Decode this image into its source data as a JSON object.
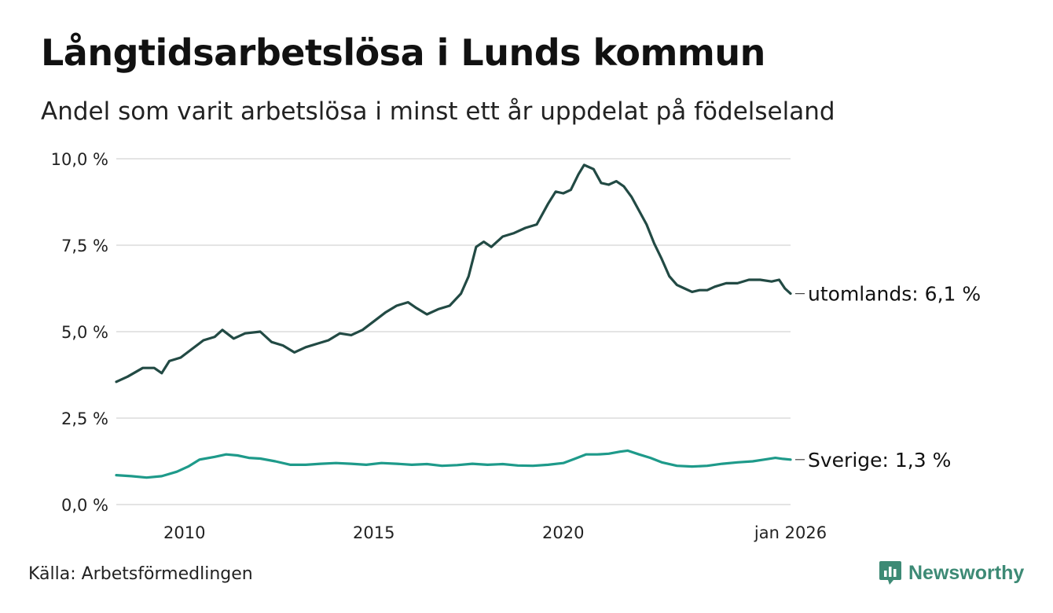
{
  "title": "Långtidsarbetslösa i Lunds kommun",
  "subtitle": "Andel som varit arbetslösa i minst ett år uppdelat på födelseland",
  "source": "Källa: Arbetsförmedlingen",
  "brand": {
    "name": "Newsworthy",
    "icon": "newsworthy-logo-icon",
    "color": "#3d8a75"
  },
  "chart_data": {
    "type": "line",
    "ylim": [
      0,
      10
    ],
    "xlim": [
      2008.2,
      2026.0
    ],
    "y_ticks": [
      {
        "value": 0,
        "label": "0,0 %"
      },
      {
        "value": 2.5,
        "label": "2,5 %"
      },
      {
        "value": 5,
        "label": "5,0 %"
      },
      {
        "value": 7.5,
        "label": "7,5 %"
      },
      {
        "value": 10,
        "label": "10,0 %"
      }
    ],
    "x_ticks": [
      {
        "value": 2010,
        "label": "2010"
      },
      {
        "value": 2015,
        "label": "2015"
      },
      {
        "value": 2020,
        "label": "2020"
      },
      {
        "value": 2026,
        "label": "jan 2026"
      }
    ],
    "grid": true,
    "series": [
      {
        "name": "utomlands",
        "label": "utomlands: 6,1 %",
        "color": "#224a44",
        "points": [
          [
            2008.2,
            3.55
          ],
          [
            2008.5,
            3.7
          ],
          [
            2008.9,
            3.95
          ],
          [
            2009.2,
            3.95
          ],
          [
            2009.4,
            3.8
          ],
          [
            2009.6,
            4.15
          ],
          [
            2009.9,
            4.25
          ],
          [
            2010.2,
            4.5
          ],
          [
            2010.5,
            4.75
          ],
          [
            2010.8,
            4.85
          ],
          [
            2011.0,
            5.05
          ],
          [
            2011.3,
            4.8
          ],
          [
            2011.6,
            4.95
          ],
          [
            2012.0,
            5.0
          ],
          [
            2012.3,
            4.7
          ],
          [
            2012.6,
            4.6
          ],
          [
            2012.9,
            4.4
          ],
          [
            2013.2,
            4.55
          ],
          [
            2013.5,
            4.65
          ],
          [
            2013.8,
            4.75
          ],
          [
            2014.1,
            4.95
          ],
          [
            2014.4,
            4.9
          ],
          [
            2014.7,
            5.05
          ],
          [
            2015.0,
            5.3
          ],
          [
            2015.3,
            5.55
          ],
          [
            2015.6,
            5.75
          ],
          [
            2015.9,
            5.85
          ],
          [
            2016.1,
            5.7
          ],
          [
            2016.4,
            5.5
          ],
          [
            2016.7,
            5.65
          ],
          [
            2017.0,
            5.75
          ],
          [
            2017.3,
            6.1
          ],
          [
            2017.5,
            6.6
          ],
          [
            2017.7,
            7.45
          ],
          [
            2017.9,
            7.6
          ],
          [
            2018.1,
            7.45
          ],
          [
            2018.4,
            7.75
          ],
          [
            2018.7,
            7.85
          ],
          [
            2019.0,
            8.0
          ],
          [
            2019.3,
            8.1
          ],
          [
            2019.6,
            8.7
          ],
          [
            2019.8,
            9.05
          ],
          [
            2020.0,
            9.0
          ],
          [
            2020.2,
            9.1
          ],
          [
            2020.4,
            9.55
          ],
          [
            2020.55,
            9.82
          ],
          [
            2020.8,
            9.7
          ],
          [
            2021.0,
            9.3
          ],
          [
            2021.2,
            9.25
          ],
          [
            2021.4,
            9.35
          ],
          [
            2021.6,
            9.2
          ],
          [
            2021.8,
            8.9
          ],
          [
            2022.0,
            8.5
          ],
          [
            2022.2,
            8.1
          ],
          [
            2022.4,
            7.55
          ],
          [
            2022.6,
            7.1
          ],
          [
            2022.8,
            6.6
          ],
          [
            2023.0,
            6.35
          ],
          [
            2023.2,
            6.25
          ],
          [
            2023.4,
            6.15
          ],
          [
            2023.6,
            6.2
          ],
          [
            2023.8,
            6.2
          ],
          [
            2024.0,
            6.3
          ],
          [
            2024.3,
            6.4
          ],
          [
            2024.6,
            6.4
          ],
          [
            2024.9,
            6.5
          ],
          [
            2025.2,
            6.5
          ],
          [
            2025.5,
            6.45
          ],
          [
            2025.7,
            6.5
          ],
          [
            2025.85,
            6.25
          ],
          [
            2026.0,
            6.1
          ]
        ]
      },
      {
        "name": "Sverige",
        "label": "Sverige: 1,3 %",
        "color": "#1e9a8a",
        "points": [
          [
            2008.2,
            0.85
          ],
          [
            2008.6,
            0.82
          ],
          [
            2009.0,
            0.78
          ],
          [
            2009.4,
            0.82
          ],
          [
            2009.8,
            0.95
          ],
          [
            2010.1,
            1.1
          ],
          [
            2010.4,
            1.3
          ],
          [
            2010.8,
            1.38
          ],
          [
            2011.1,
            1.45
          ],
          [
            2011.4,
            1.42
          ],
          [
            2011.7,
            1.35
          ],
          [
            2012.0,
            1.33
          ],
          [
            2012.4,
            1.25
          ],
          [
            2012.8,
            1.15
          ],
          [
            2013.2,
            1.15
          ],
          [
            2013.6,
            1.18
          ],
          [
            2014.0,
            1.2
          ],
          [
            2014.4,
            1.18
          ],
          [
            2014.8,
            1.15
          ],
          [
            2015.2,
            1.2
          ],
          [
            2015.6,
            1.18
          ],
          [
            2016.0,
            1.15
          ],
          [
            2016.4,
            1.17
          ],
          [
            2016.8,
            1.12
          ],
          [
            2017.2,
            1.14
          ],
          [
            2017.6,
            1.18
          ],
          [
            2018.0,
            1.15
          ],
          [
            2018.4,
            1.17
          ],
          [
            2018.8,
            1.13
          ],
          [
            2019.2,
            1.12
          ],
          [
            2019.6,
            1.15
          ],
          [
            2020.0,
            1.2
          ],
          [
            2020.3,
            1.32
          ],
          [
            2020.6,
            1.45
          ],
          [
            2020.9,
            1.45
          ],
          [
            2021.2,
            1.47
          ],
          [
            2021.5,
            1.53
          ],
          [
            2021.7,
            1.56
          ],
          [
            2022.0,
            1.45
          ],
          [
            2022.3,
            1.35
          ],
          [
            2022.6,
            1.22
          ],
          [
            2023.0,
            1.12
          ],
          [
            2023.4,
            1.1
          ],
          [
            2023.8,
            1.12
          ],
          [
            2024.2,
            1.18
          ],
          [
            2024.6,
            1.22
          ],
          [
            2025.0,
            1.25
          ],
          [
            2025.3,
            1.3
          ],
          [
            2025.6,
            1.35
          ],
          [
            2025.8,
            1.32
          ],
          [
            2026.0,
            1.3
          ]
        ]
      }
    ]
  }
}
